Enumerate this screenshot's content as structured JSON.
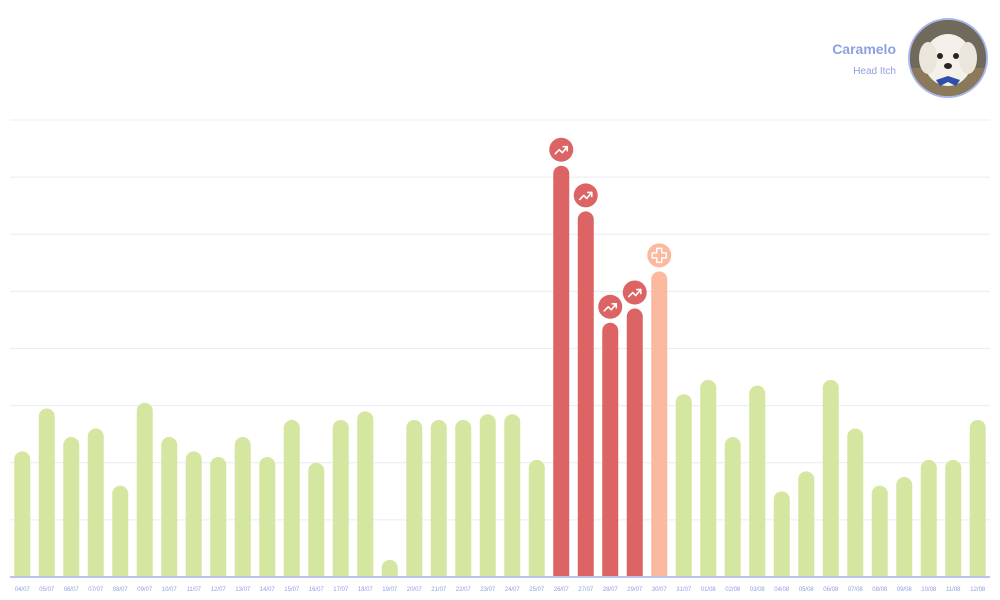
{
  "profile": {
    "name": "Caramelo",
    "condition": "Head Itch"
  },
  "colors": {
    "normal": "#d4e6a0",
    "alert": "#dc6464",
    "treatment": "#fdb9a0",
    "grid": "#e9ecf5",
    "axis": "#b9c4f0",
    "label": "#8f9fe0"
  },
  "icons": {
    "alert": "trending-up-icon",
    "treatment": "medical-cross-icon"
  },
  "chart_data": {
    "type": "bar",
    "categories": [
      "04/07",
      "05/07",
      "06/07",
      "07/07",
      "08/07",
      "09/07",
      "10/07",
      "11/07",
      "12/07",
      "13/07",
      "14/07",
      "15/07",
      "16/07",
      "17/07",
      "18/07",
      "19/07",
      "20/07",
      "21/07",
      "22/07",
      "23/07",
      "24/07",
      "25/07",
      "26/07",
      "27/07",
      "28/07",
      "29/07",
      "30/07",
      "31/07",
      "01/08",
      "02/08",
      "03/08",
      "04/08",
      "05/08",
      "06/08",
      "07/08",
      "08/08",
      "09/08",
      "10/08",
      "11/08",
      "12/08"
    ],
    "values": [
      2.2,
      2.95,
      2.45,
      2.6,
      1.6,
      3.05,
      2.45,
      2.2,
      2.1,
      2.45,
      2.1,
      2.75,
      2.0,
      2.75,
      2.9,
      0.3,
      2.75,
      2.75,
      2.75,
      2.85,
      2.85,
      2.05,
      7.2,
      6.4,
      4.45,
      4.7,
      5.35,
      3.2,
      3.45,
      2.45,
      3.35,
      1.5,
      1.85,
      3.45,
      2.6,
      1.6,
      1.75,
      2.05,
      2.05,
      2.75
    ],
    "status": [
      "normal",
      "normal",
      "normal",
      "normal",
      "normal",
      "normal",
      "normal",
      "normal",
      "normal",
      "normal",
      "normal",
      "normal",
      "normal",
      "normal",
      "normal",
      "normal",
      "normal",
      "normal",
      "normal",
      "normal",
      "normal",
      "normal",
      "alert",
      "alert",
      "alert",
      "alert",
      "treatment",
      "normal",
      "normal",
      "normal",
      "normal",
      "normal",
      "normal",
      "normal",
      "normal",
      "normal",
      "normal",
      "normal",
      "normal",
      "normal"
    ],
    "ylim": [
      0,
      8
    ],
    "grid": true,
    "legend": "none",
    "title": "",
    "xlabel": "",
    "ylabel": ""
  }
}
